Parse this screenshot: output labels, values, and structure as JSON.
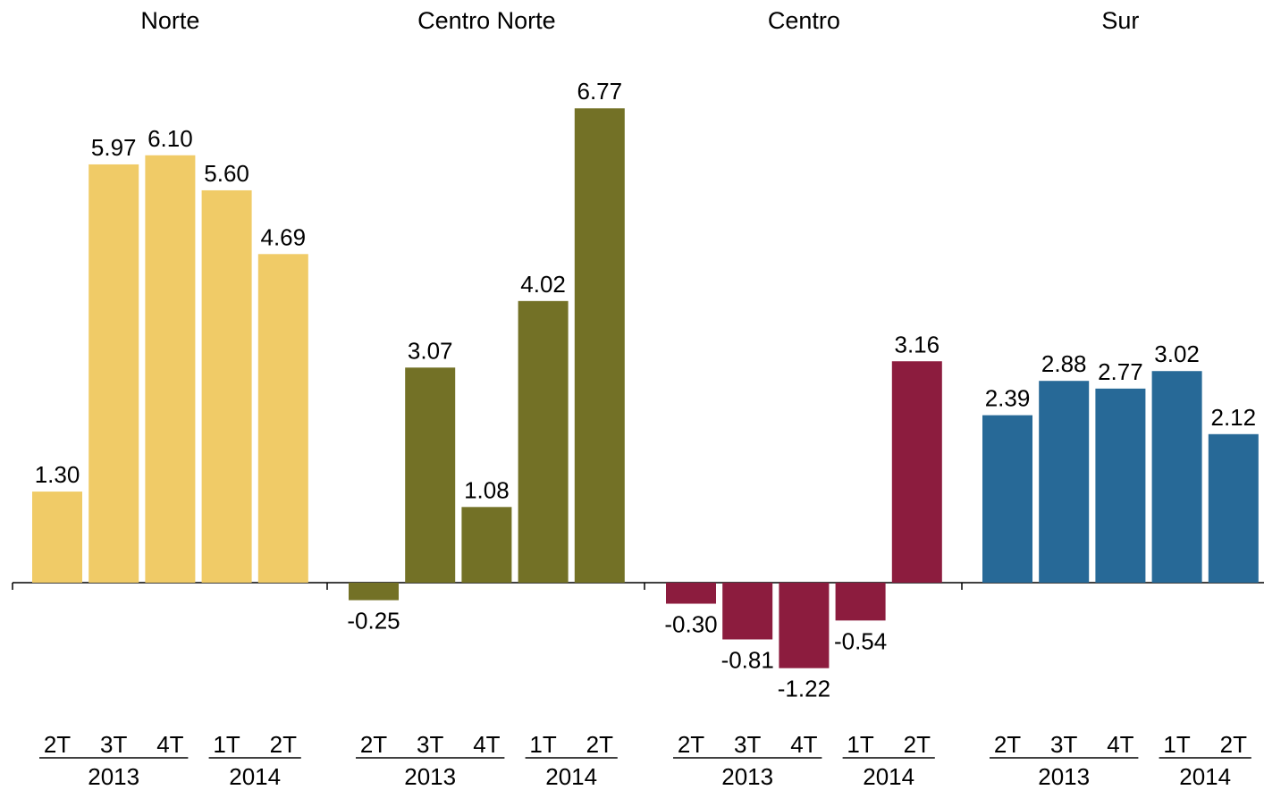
{
  "chart_data": {
    "type": "bar",
    "categories": [
      "2T",
      "3T",
      "4T",
      "1T",
      "2T"
    ],
    "year_groups": [
      {
        "label": "2013",
        "quarters": [
          "2T",
          "3T",
          "4T"
        ]
      },
      {
        "label": "2014",
        "quarters": [
          "1T",
          "2T"
        ]
      }
    ],
    "ylim": [
      -1.5,
      7.2
    ],
    "grid": false,
    "legend": "none",
    "panels": [
      {
        "title": "Norte",
        "color": "#f0cb67",
        "values": [
          1.3,
          5.97,
          6.1,
          5.6,
          4.69
        ],
        "labels": [
          "1.30",
          "5.97",
          "6.10",
          "5.60",
          "4.69"
        ]
      },
      {
        "title": "Centro Norte",
        "color": "#737126",
        "values": [
          -0.25,
          3.07,
          1.08,
          4.02,
          6.77
        ],
        "labels": [
          "-0.25",
          "3.07",
          "1.08",
          "4.02",
          "6.77"
        ]
      },
      {
        "title": "Centro",
        "color": "#8c1c3e",
        "values": [
          -0.3,
          -0.81,
          -1.22,
          -0.54,
          3.16
        ],
        "labels": [
          "-0.30",
          "-0.81",
          "-1.22",
          "-0.54",
          "3.16"
        ]
      },
      {
        "title": "Sur",
        "color": "#276997",
        "values": [
          2.39,
          2.88,
          2.77,
          3.02,
          2.12
        ],
        "labels": [
          "2.39",
          "2.88",
          "2.77",
          "3.02",
          "2.12"
        ]
      }
    ]
  }
}
